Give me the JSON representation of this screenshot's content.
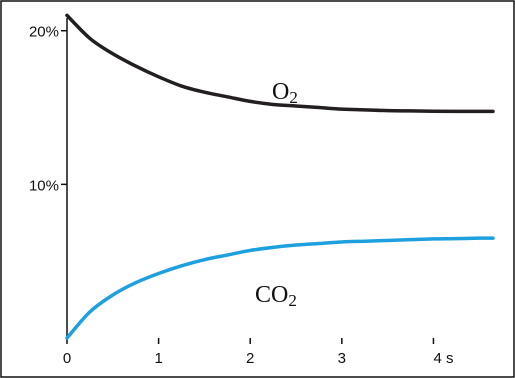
{
  "chart_data": {
    "type": "line",
    "title": "",
    "xlabel": "",
    "ylabel": "",
    "xlim": [
      0,
      4.65
    ],
    "ylim": [
      0,
      22
    ],
    "x_ticks": [
      0,
      1,
      2,
      3,
      4
    ],
    "x_tick_labels": [
      "0",
      "1",
      "2",
      "3",
      "4 s"
    ],
    "y_ticks": [
      10,
      20
    ],
    "y_tick_labels": [
      "10%",
      "20%"
    ],
    "grid": false,
    "legend": "none",
    "series": [
      {
        "label_main": "O",
        "label_sub": "2",
        "color": "#231f20",
        "x": [
          0,
          0.25,
          0.5,
          0.75,
          1,
          1.25,
          1.5,
          1.75,
          2,
          2.25,
          2.5,
          2.75,
          3,
          3.25,
          3.5,
          3.75,
          4,
          4.25,
          4.5,
          4.65
        ],
        "y": [
          21.0,
          19.5,
          18.5,
          17.7,
          17.0,
          16.4,
          16.0,
          15.7,
          15.4,
          15.2,
          15.1,
          15.0,
          14.9,
          14.85,
          14.8,
          14.78,
          14.76,
          14.75,
          14.75,
          14.75
        ]
      },
      {
        "label_main": "CO",
        "label_sub": "2",
        "color": "#1ea0df",
        "x": [
          0,
          0.25,
          0.5,
          0.75,
          1,
          1.25,
          1.5,
          1.75,
          2,
          2.25,
          2.5,
          2.75,
          3,
          3.25,
          3.5,
          3.75,
          4,
          4.25,
          4.5,
          4.65
        ],
        "y": [
          0,
          1.7,
          2.8,
          3.6,
          4.2,
          4.7,
          5.1,
          5.4,
          5.7,
          5.9,
          6.05,
          6.15,
          6.25,
          6.3,
          6.35,
          6.4,
          6.45,
          6.47,
          6.5,
          6.5
        ]
      }
    ]
  }
}
